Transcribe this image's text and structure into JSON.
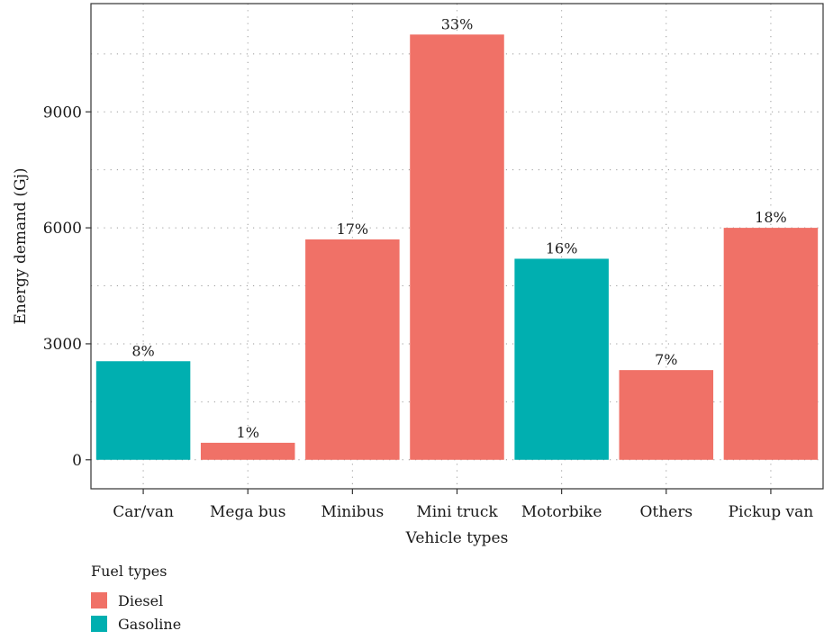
{
  "chart_data": {
    "type": "bar",
    "xlabel": "Vehicle types",
    "ylabel": "Energy demand (Gj)",
    "ylim": [
      -750,
      11800
    ],
    "yticks": [
      0,
      3000,
      6000,
      9000
    ],
    "grid": true,
    "legend_position": "bottom-left",
    "legend_title": "Fuel types",
    "legend": [
      {
        "name": "Diesel",
        "color": "#f07167"
      },
      {
        "name": "Gasoline",
        "color": "#00afb0"
      }
    ],
    "categories": [
      "Car/van",
      "Mega bus",
      "Minibus",
      "Mini truck",
      "Motorbike",
      "Others",
      "Pickup van"
    ],
    "values": [
      2550,
      440,
      5700,
      11000,
      5200,
      2320,
      6000
    ],
    "fuel": [
      "Gasoline",
      "Diesel",
      "Diesel",
      "Diesel",
      "Gasoline",
      "Diesel",
      "Diesel"
    ],
    "labels": [
      "8%",
      "1%",
      "17%",
      "33%",
      "16%",
      "7%",
      "18%"
    ]
  }
}
